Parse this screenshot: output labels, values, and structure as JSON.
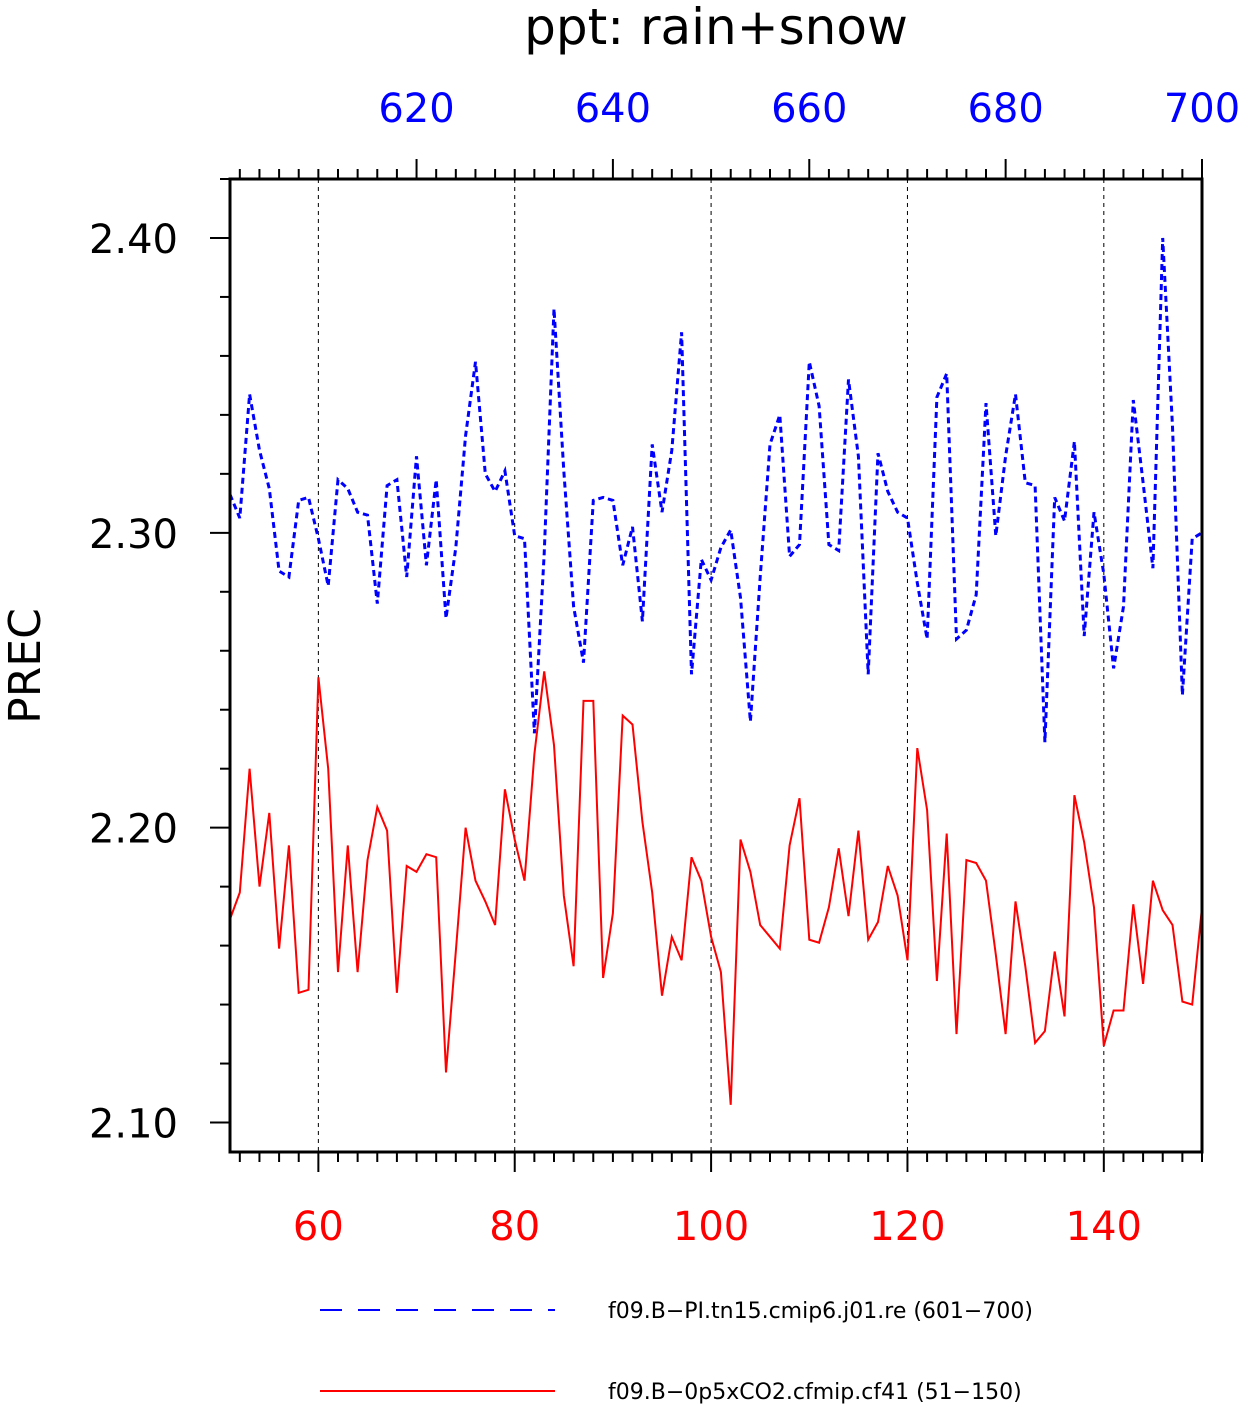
{
  "chart_data": {
    "type": "line",
    "title": "ppt: rain+snow",
    "ylabel": "PREC",
    "ylim": [
      2.09,
      2.42
    ],
    "yticks": [
      2.1,
      2.2,
      2.3,
      2.4
    ],
    "ytick_labels": [
      "2.10",
      "2.20",
      "2.30",
      "2.40"
    ],
    "grid": "vertical dashed lines at major x ticks",
    "legend_position": "bottom",
    "x_bottom": {
      "range": [
        51,
        150
      ],
      "ticks": [
        60,
        80,
        100,
        120,
        140
      ],
      "tick_labels": [
        "60",
        "80",
        "100",
        "120",
        "140"
      ],
      "color": "#ff0000"
    },
    "x_top": {
      "range": [
        601,
        700
      ],
      "ticks": [
        620,
        640,
        660,
        680,
        700
      ],
      "tick_labels": [
        "620",
        "640",
        "660",
        "680",
        "700"
      ],
      "color": "#0000ff"
    },
    "series": [
      {
        "name": "f09.B−PI.tn15.cmip6.j01.re (601−700)",
        "color": "#0000ff",
        "style": "dashed",
        "axis": "top",
        "x_start": 601,
        "values": [
          2.313,
          2.305,
          2.347,
          2.328,
          2.315,
          2.287,
          2.285,
          2.311,
          2.312,
          2.298,
          2.282,
          2.318,
          2.315,
          2.307,
          2.306,
          2.276,
          2.316,
          2.318,
          2.285,
          2.326,
          2.289,
          2.318,
          2.271,
          2.295,
          2.333,
          2.358,
          2.32,
          2.314,
          2.321,
          2.299,
          2.298,
          2.232,
          2.293,
          2.376,
          2.321,
          2.275,
          2.256,
          2.311,
          2.312,
          2.311,
          2.289,
          2.302,
          2.27,
          2.33,
          2.307,
          2.328,
          2.368,
          2.252,
          2.291,
          2.284,
          2.295,
          2.301,
          2.278,
          2.236,
          2.285,
          2.33,
          2.34,
          2.292,
          2.296,
          2.358,
          2.343,
          2.296,
          2.294,
          2.352,
          2.326,
          2.252,
          2.327,
          2.314,
          2.307,
          2.305,
          2.283,
          2.264,
          2.346,
          2.354,
          2.264,
          2.267,
          2.279,
          2.344,
          2.299,
          2.326,
          2.347,
          2.317,
          2.316,
          2.229,
          2.312,
          2.304,
          2.331,
          2.265,
          2.307,
          2.286,
          2.254,
          2.275,
          2.345,
          2.317,
          2.288,
          2.4,
          2.336,
          2.245,
          2.298,
          2.3
        ]
      },
      {
        "name": "f09.B−0p5xCO2.cfmip.cf41 (51−150)",
        "color": "#ff0000",
        "style": "solid",
        "axis": "bottom",
        "x_start": 51,
        "values": [
          2.169,
          2.178,
          2.22,
          2.18,
          2.205,
          2.159,
          2.194,
          2.144,
          2.145,
          2.251,
          2.22,
          2.151,
          2.194,
          2.151,
          2.189,
          2.207,
          2.199,
          2.144,
          2.187,
          2.185,
          2.191,
          2.19,
          2.117,
          2.158,
          2.2,
          2.182,
          2.175,
          2.167,
          2.213,
          2.196,
          2.182,
          2.225,
          2.253,
          2.228,
          2.177,
          2.153,
          2.243,
          2.243,
          2.149,
          2.171,
          2.238,
          2.235,
          2.202,
          2.178,
          2.143,
          2.163,
          2.155,
          2.19,
          2.182,
          2.163,
          2.151,
          2.106,
          2.196,
          2.185,
          2.167,
          2.163,
          2.159,
          2.194,
          2.21,
          2.162,
          2.161,
          2.173,
          2.193,
          2.17,
          2.199,
          2.162,
          2.168,
          2.187,
          2.177,
          2.155,
          2.227,
          2.206,
          2.148,
          2.198,
          2.13,
          2.189,
          2.188,
          2.182,
          2.157,
          2.13,
          2.175,
          2.153,
          2.127,
          2.131,
          2.158,
          2.136,
          2.211,
          2.195,
          2.173,
          2.126,
          2.138,
          2.138,
          2.174,
          2.147,
          2.182,
          2.172,
          2.167,
          2.141,
          2.14,
          2.173
        ]
      }
    ]
  }
}
